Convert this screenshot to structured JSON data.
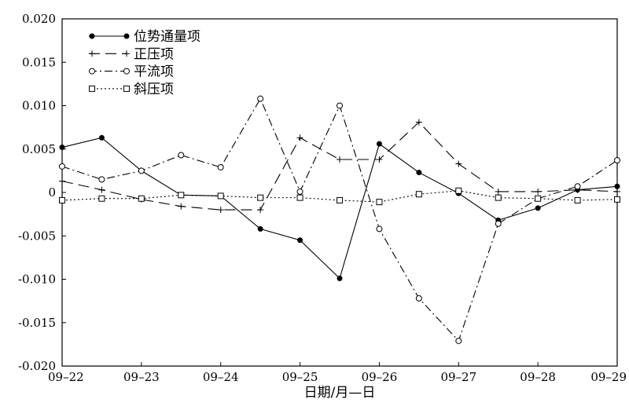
{
  "chart_data": {
    "type": "line",
    "xlabel": "日期/月—日",
    "ylabel": "",
    "x_tick_labels": [
      "09–22",
      "09–23",
      "09–24",
      "09–25",
      "09–26",
      "09–27",
      "09–28",
      "09–29"
    ],
    "x": [
      0,
      0.5,
      1,
      1.5,
      2,
      2.5,
      3,
      3.5,
      4,
      4.5,
      5,
      5.5,
      6,
      6.5,
      7
    ],
    "ylim": [
      -0.02,
      0.02
    ],
    "y_tick_labels": [
      "0.020",
      "0.015",
      "0.010",
      "0.005",
      "0",
      "-0.005",
      "-0.010",
      "-0.015",
      "-0.020"
    ],
    "y_ticks": [
      0.02,
      0.015,
      0.01,
      0.005,
      0,
      -0.005,
      -0.01,
      -0.015,
      -0.02
    ],
    "grid": false,
    "legend_position": "top-left",
    "series": [
      {
        "name": "位势通量项",
        "style": "solid",
        "marker": "filled-circle",
        "values": [
          0.0052,
          0.0063,
          0.0025,
          -0.0003,
          -0.0004,
          -0.0042,
          -0.0055,
          -0.0099,
          0.0056,
          0.0023,
          -0.0001,
          -0.0032,
          -0.0018,
          0.0003,
          0.0007
        ]
      },
      {
        "name": "正压项",
        "style": "long-dash",
        "marker": "plus",
        "values": [
          0.0013,
          0.0003,
          -0.0008,
          -0.0016,
          -0.002,
          -0.002,
          0.0063,
          0.0038,
          0.0038,
          0.0081,
          0.0033,
          0.0001,
          0.0001,
          0.0003,
          0.0001
        ]
      },
      {
        "name": "平流项",
        "style": "dash-dot",
        "marker": "open-circle",
        "values": [
          0.003,
          0.0015,
          0.0025,
          0.0043,
          0.0029,
          0.0108,
          0.0001,
          0.01,
          -0.0042,
          -0.0122,
          -0.0171,
          -0.0036,
          -0.0007,
          0.0007,
          0.0037
        ]
      },
      {
        "name": "斜压项",
        "style": "dotted",
        "marker": "open-square",
        "values": [
          -0.0009,
          -0.0007,
          -0.0007,
          -0.0003,
          -0.0004,
          -0.0006,
          -0.0006,
          -0.0009,
          -0.0011,
          -0.0002,
          0.0002,
          -0.0006,
          -0.0007,
          -0.0009,
          -0.0008
        ]
      }
    ]
  }
}
